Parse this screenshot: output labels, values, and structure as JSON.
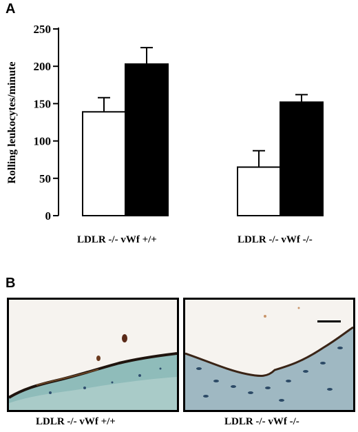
{
  "panel_a": {
    "letter": "A"
  },
  "panel_b": {
    "letter": "B",
    "images": [
      {
        "caption": "LDLR -/- vWf +/+"
      },
      {
        "caption": "LDLR -/- vWf -/-"
      }
    ]
  },
  "chart_data": {
    "type": "bar",
    "title": "",
    "xlabel": "",
    "ylabel": "Rolling leukocytes/minute",
    "ylim": [
      0,
      250
    ],
    "yticks": [
      0,
      50,
      100,
      150,
      200,
      250
    ],
    "grid": false,
    "categories": [
      "LDLR -/- vWf +/+",
      "LDLR -/- vWf -/-"
    ],
    "series": [
      {
        "values": [
          139,
          65
        ],
        "errors": [
          19,
          22
        ],
        "color": "#ffffff"
      },
      {
        "values": [
          203,
          152
        ],
        "errors": [
          22,
          10
        ],
        "color": "#000000"
      }
    ]
  }
}
